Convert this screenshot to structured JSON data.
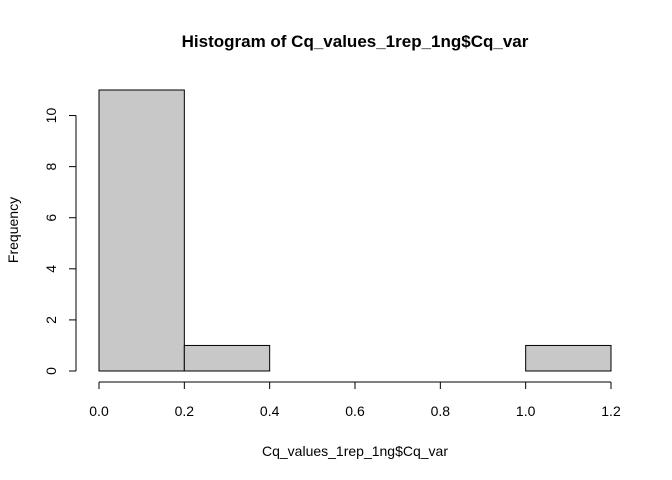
{
  "chart_data": {
    "type": "bar",
    "title": "Histogram of Cq_values_1rep_1ng$Cq_var",
    "xlabel": "Cq_values_1rep_1ng$Cq_var",
    "ylabel": "Frequency",
    "bins": [
      {
        "from": 0.0,
        "to": 0.2,
        "count": 11
      },
      {
        "from": 0.2,
        "to": 0.4,
        "count": 1
      },
      {
        "from": 0.4,
        "to": 0.6,
        "count": 0
      },
      {
        "from": 0.6,
        "to": 0.8,
        "count": 0
      },
      {
        "from": 0.8,
        "to": 1.0,
        "count": 0
      },
      {
        "from": 1.0,
        "to": 1.2,
        "count": 1
      }
    ],
    "xlim": [
      0,
      1.2
    ],
    "ylim": [
      0,
      11
    ],
    "x_ticks": [
      "0.0",
      "0.2",
      "0.4",
      "0.6",
      "0.8",
      "1.0",
      "1.2"
    ],
    "y_ticks": [
      "0",
      "2",
      "4",
      "6",
      "8",
      "10"
    ],
    "bar_color": "#c8c8c8",
    "grid": false,
    "legend": "none"
  }
}
